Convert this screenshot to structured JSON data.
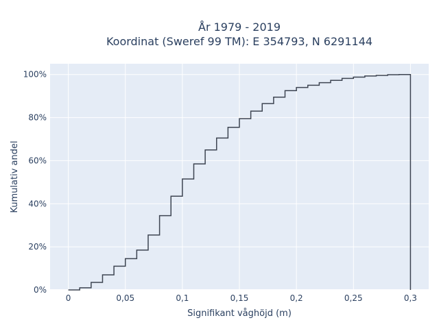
{
  "chart_data": {
    "type": "line",
    "line_shape": "step",
    "title": [
      "År 1979 - 2019",
      "Koordinat (Sweref 99 TM): E 354793, N 6291144"
    ],
    "xlabel": "Signifikant våghöjd (m)",
    "ylabel": "Kumulativ andel",
    "xlim": [
      -0.016,
      0.316
    ],
    "ylim": [
      0,
      1.05
    ],
    "grid": true,
    "legend": "none",
    "x_ticks": [
      {
        "value": 0,
        "label": "0"
      },
      {
        "value": 0.05,
        "label": "0,05"
      },
      {
        "value": 0.1,
        "label": "0,1"
      },
      {
        "value": 0.15,
        "label": "0,15"
      },
      {
        "value": 0.2,
        "label": "0,2"
      },
      {
        "value": 0.25,
        "label": "0,25"
      },
      {
        "value": 0.3,
        "label": "0,3"
      }
    ],
    "y_ticks": [
      {
        "value": 0,
        "label": "0%"
      },
      {
        "value": 0.2,
        "label": "20%"
      },
      {
        "value": 0.4,
        "label": "40%"
      },
      {
        "value": 0.6,
        "label": "60%"
      },
      {
        "value": 0.8,
        "label": "80%"
      },
      {
        "value": 1.0,
        "label": "100%"
      }
    ],
    "series": [
      {
        "color": "#3d4451",
        "x": [
          0,
          0.01,
          0.02,
          0.03,
          0.04,
          0.05,
          0.06,
          0.07,
          0.08,
          0.09,
          0.1,
          0.11,
          0.12,
          0.13,
          0.14,
          0.15,
          0.16,
          0.17,
          0.18,
          0.19,
          0.2,
          0.21,
          0.22,
          0.23,
          0.24,
          0.25,
          0.26,
          0.27,
          0.28,
          0.29,
          0.3
        ],
        "y": [
          0,
          0.01,
          0.035,
          0.07,
          0.11,
          0.145,
          0.185,
          0.255,
          0.345,
          0.435,
          0.515,
          0.585,
          0.65,
          0.705,
          0.755,
          0.795,
          0.83,
          0.865,
          0.895,
          0.925,
          0.94,
          0.95,
          0.962,
          0.973,
          0.982,
          0.988,
          0.993,
          0.996,
          0.999,
          1.0,
          0
        ]
      }
    ]
  }
}
